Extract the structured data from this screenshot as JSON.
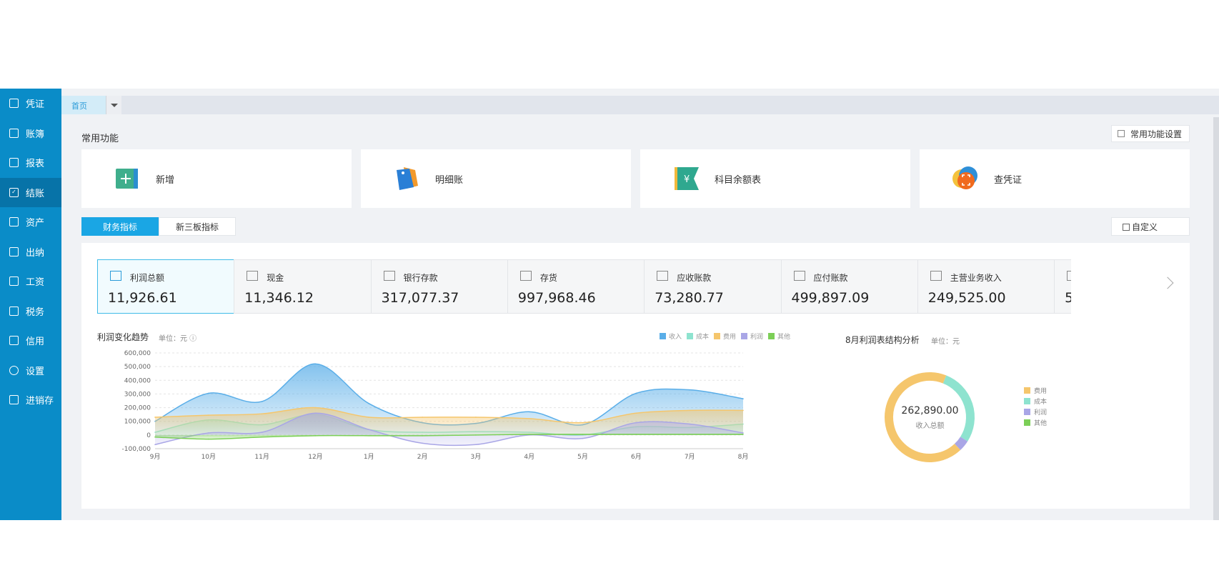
{
  "sidebar": {
    "items": [
      {
        "label": "凭证",
        "icon": "voucher-icon"
      },
      {
        "label": "账簿",
        "icon": "ledger-icon"
      },
      {
        "label": "报表",
        "icon": "report-icon"
      },
      {
        "label": "结账",
        "icon": "checkout-icon",
        "active": true
      },
      {
        "label": "资产",
        "icon": "asset-icon"
      },
      {
        "label": "出纳",
        "icon": "cashier-icon"
      },
      {
        "label": "工资",
        "icon": "salary-icon"
      },
      {
        "label": "税务",
        "icon": "tax-icon"
      },
      {
        "label": "信用",
        "icon": "credit-icon"
      },
      {
        "label": "设置",
        "icon": "gear-icon"
      },
      {
        "label": "进销存",
        "icon": "inventory-icon"
      }
    ]
  },
  "tabs": {
    "home": "首页"
  },
  "common": {
    "title": "常用功能",
    "settings_label": "常用功能设置",
    "cards": [
      {
        "label": "新增",
        "icon": "add-icon"
      },
      {
        "label": "明细账",
        "icon": "tags-icon"
      },
      {
        "label": "科目余额表",
        "icon": "yen-flag-icon"
      },
      {
        "label": "查凭证",
        "icon": "scan-icon"
      }
    ]
  },
  "indicator_tabs": {
    "active": "财务指标",
    "inactive": "新三板指标",
    "custom_label": "自定义"
  },
  "metrics": [
    {
      "label": "利润总额",
      "value": "11,926.61"
    },
    {
      "label": "现金",
      "value": "11,346.12"
    },
    {
      "label": "银行存款",
      "value": "317,077.37"
    },
    {
      "label": "存货",
      "value": "997,968.46"
    },
    {
      "label": "应收账款",
      "value": "73,280.77"
    },
    {
      "label": "应付账款",
      "value": "499,897.09"
    },
    {
      "label": "主营业务收入",
      "value": "249,525.00"
    },
    {
      "label": "",
      "value": "5"
    }
  ],
  "trend": {
    "title": "利润变化趋势",
    "unit": "单位：元"
  },
  "donut": {
    "title": "8月利润表结构分析",
    "unit": "单位：元",
    "total": "262,890.00",
    "total_label": "收入总额"
  },
  "colors": {
    "sidebar": "#0a8cc8",
    "accent": "#1aa6e4",
    "revenue": "#5aaee8",
    "cost": "#8ee3cf",
    "expense": "#f5c66c",
    "profit": "#a9a6e6",
    "other": "#7ccf57"
  },
  "chart_data": [
    {
      "type": "area",
      "title": "利润变化趋势",
      "ylabel": "单位：元",
      "categories": [
        "9月",
        "10月",
        "11月",
        "12月",
        "1月",
        "2月",
        "3月",
        "4月",
        "5月",
        "6月",
        "7月",
        "8月"
      ],
      "y_ticks": [
        "600,000",
        "500,000",
        "400,000",
        "300,000",
        "200,000",
        "100,000",
        "0",
        "-100,000"
      ],
      "ylim": [
        -100000,
        600000
      ],
      "grid": true,
      "legend_position": "top-right",
      "series": [
        {
          "name": "收入",
          "color": "#5aaee8",
          "values": [
            100000,
            305000,
            245000,
            520000,
            230000,
            90000,
            85000,
            170000,
            75000,
            305000,
            330000,
            265000
          ]
        },
        {
          "name": "成本",
          "color": "#8ee3cf",
          "values": [
            20000,
            110000,
            75000,
            150000,
            40000,
            20000,
            25000,
            20000,
            0,
            60000,
            55000,
            80000
          ]
        },
        {
          "name": "费用",
          "color": "#f5c66c",
          "values": [
            130000,
            145000,
            155000,
            200000,
            130000,
            130000,
            130000,
            120000,
            90000,
            160000,
            180000,
            180000
          ]
        },
        {
          "name": "利润",
          "color": "#a9a6e6",
          "values": [
            -70000,
            15000,
            20000,
            160000,
            40000,
            -60000,
            -70000,
            0,
            -25000,
            90000,
            80000,
            15000
          ]
        },
        {
          "name": "其他",
          "color": "#7ccf57",
          "values": [
            -15000,
            -30000,
            -15000,
            -5000,
            -5000,
            -5000,
            0,
            5000,
            5000,
            5000,
            5000,
            5000
          ]
        }
      ]
    },
    {
      "type": "pie",
      "title": "8月利润表结构分析",
      "center_value": "262,890.00",
      "center_label": "收入总额",
      "legend_position": "right",
      "slices": [
        {
          "name": "费用",
          "color": "#f5c66c",
          "share": 0.68
        },
        {
          "name": "成本",
          "color": "#8ee3cf",
          "share": 0.28
        },
        {
          "name": "利润",
          "color": "#a9a6e6",
          "share": 0.04
        },
        {
          "name": "其他",
          "color": "#7ccf57",
          "share": 0.0
        }
      ]
    }
  ]
}
